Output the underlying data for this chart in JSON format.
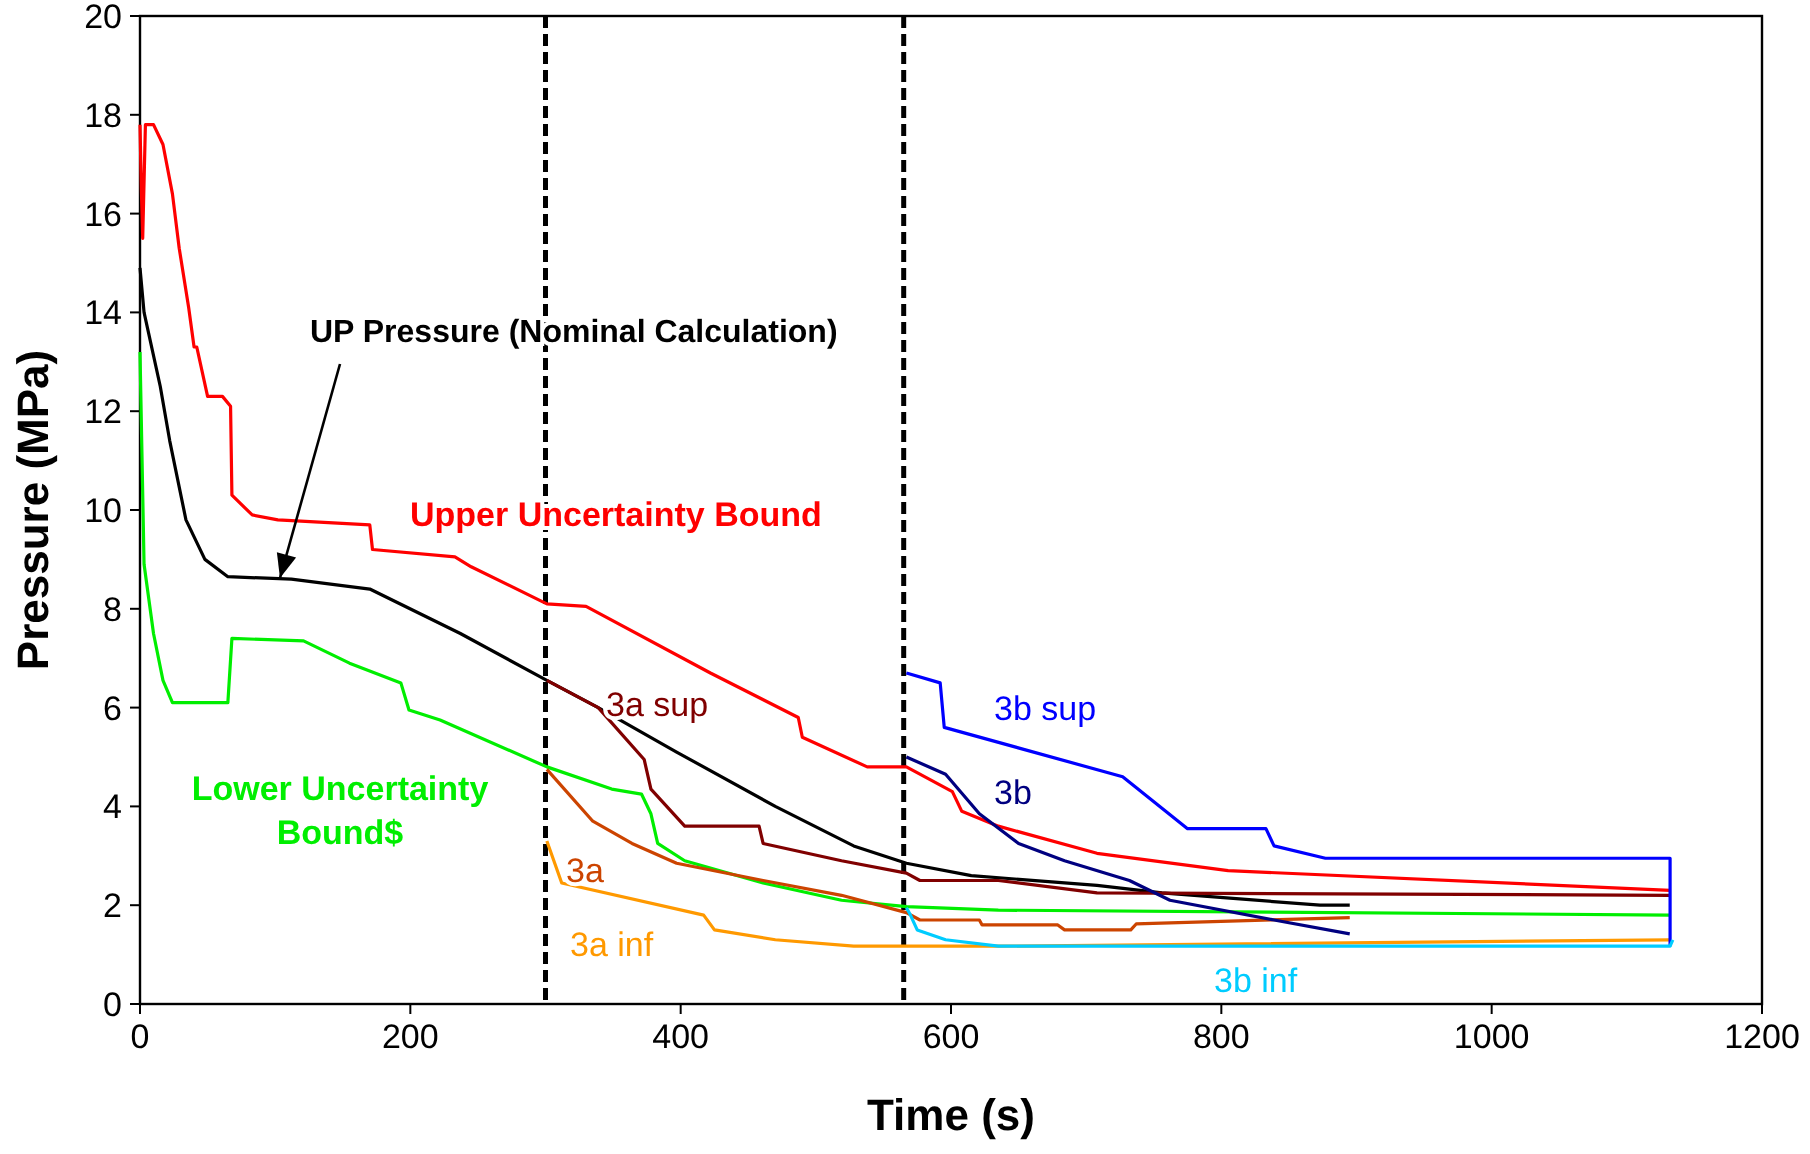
{
  "chart_data": {
    "type": "line",
    "xlabel": "Time (s)",
    "ylabel": "Pressure (MPa)",
    "xlim": [
      0,
      1200
    ],
    "ylim": [
      0,
      20
    ],
    "xticks": [
      0,
      200,
      400,
      600,
      800,
      1000,
      1200
    ],
    "yticks": [
      0,
      2,
      4,
      6,
      8,
      10,
      12,
      14,
      16,
      18,
      20
    ],
    "grid": false,
    "marker": "none",
    "line_style": "solid",
    "series": [
      {
        "name": "Upper Uncertainty Bound",
        "color": "#ff0000",
        "x": [
          0,
          1,
          2,
          4,
          10,
          17,
          24,
          29,
          36,
          40,
          42,
          50,
          61,
          67,
          68,
          83,
          102,
          170,
          172,
          233,
          245,
          301,
          330,
          422,
          487,
          490,
          538,
          565,
          567,
          601,
          608,
          635,
          708,
          805,
          1132
        ],
        "values": [
          17.8,
          16.5,
          15.5,
          17.8,
          17.8,
          17.4,
          16.4,
          15.3,
          14.1,
          13.3,
          13.3,
          12.3,
          12.3,
          12.1,
          10.3,
          9.9,
          9.8,
          9.7,
          9.2,
          9.05,
          8.85,
          8.1,
          8.05,
          6.7,
          5.8,
          5.4,
          4.8,
          4.8,
          4.8,
          4.3,
          3.9,
          3.6,
          3.05,
          2.7,
          2.3
        ]
      },
      {
        "name": "UP Pressure (Nominal Calculation)",
        "color": "#000000",
        "x": [
          0,
          3,
          15,
          22,
          34,
          48,
          65,
          112,
          170,
          237,
          301,
          339,
          397,
          470,
          528,
          567,
          615,
          708,
          756,
          873,
          895
        ],
        "values": [
          14.9,
          14.0,
          12.5,
          11.4,
          9.8,
          9.0,
          8.65,
          8.6,
          8.4,
          7.5,
          6.55,
          6.0,
          5.1,
          4.0,
          3.2,
          2.85,
          2.6,
          2.4,
          2.25,
          2.0,
          2.0
        ]
      },
      {
        "name": "Lower Uncertainty Bound$",
        "color": "#00ee00",
        "x": [
          0,
          3,
          10,
          17,
          24,
          65,
          68,
          121,
          155,
          193,
          199,
          222,
          301,
          349,
          371,
          378,
          383,
          403,
          461,
          519,
          567,
          635,
          1132
        ],
        "values": [
          13.2,
          8.9,
          7.5,
          6.55,
          6.1,
          6.1,
          7.4,
          7.35,
          6.9,
          6.5,
          5.95,
          5.75,
          4.8,
          4.35,
          4.25,
          3.85,
          3.25,
          2.9,
          2.45,
          2.1,
          1.97,
          1.9,
          1.8
        ]
      },
      {
        "name": "3a sup",
        "color": "#800000",
        "x": [
          301,
          339,
          373,
          378,
          403,
          458,
          461,
          519,
          567,
          577,
          635,
          708,
          1132
        ],
        "values": [
          6.55,
          6.0,
          4.95,
          4.35,
          3.6,
          3.6,
          3.25,
          2.9,
          2.65,
          2.5,
          2.5,
          2.25,
          2.2
        ]
      },
      {
        "name": "3a",
        "color": "#cc4400",
        "x": [
          301,
          335,
          364,
          397,
          461,
          519,
          567,
          577,
          621,
          623,
          679,
          684,
          733,
          737,
          895
        ],
        "values": [
          4.75,
          3.7,
          3.25,
          2.85,
          2.5,
          2.2,
          1.85,
          1.7,
          1.7,
          1.6,
          1.6,
          1.5,
          1.5,
          1.62,
          1.75
        ]
      },
      {
        "name": "3a inf",
        "color": "#ff9900",
        "x": [
          301,
          312,
          417,
          425,
          470,
          528,
          567,
          635,
          1132
        ],
        "values": [
          3.3,
          2.45,
          1.8,
          1.5,
          1.3,
          1.17,
          1.17,
          1.17,
          1.3
        ]
      },
      {
        "name": "3b sup",
        "color": "#0000ff",
        "x": [
          567,
          592,
          595,
          727,
          775,
          833,
          839,
          877,
          1132,
          1132
        ],
        "values": [
          6.7,
          6.5,
          5.6,
          4.6,
          3.55,
          3.55,
          3.2,
          2.95,
          2.95,
          1.17
        ]
      },
      {
        "name": "3b",
        "color": "#000080",
        "x": [
          567,
          596,
          621,
          650,
          684,
          732,
          762,
          839,
          895
        ],
        "values": [
          5.0,
          4.65,
          3.85,
          3.25,
          2.9,
          2.5,
          2.1,
          1.7,
          1.42
        ]
      },
      {
        "name": "3b inf",
        "color": "#00ccff",
        "x": [
          567,
          570,
          575,
          596,
          635,
          1132,
          1134
        ],
        "values": [
          1.95,
          1.8,
          1.5,
          1.3,
          1.17,
          1.17,
          1.3
        ]
      }
    ],
    "ref_lines": [
      {
        "axis": "x",
        "value": 300,
        "color": "#000000",
        "line_style": "dashed"
      },
      {
        "axis": "x",
        "value": 565,
        "color": "#000000",
        "line_style": "dashed"
      }
    ]
  }
}
